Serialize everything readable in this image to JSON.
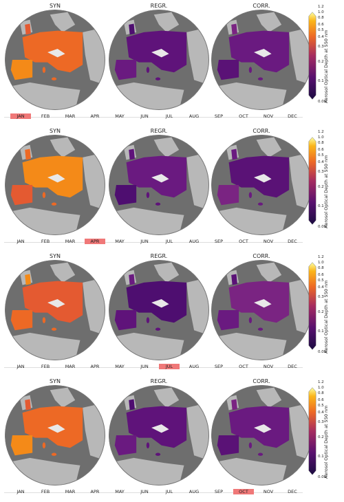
{
  "column_titles": [
    "SYN",
    "REGR.",
    "CORR."
  ],
  "months": [
    "JAN",
    "FEB",
    "MAR",
    "APR",
    "MAY",
    "JUN",
    "JUL",
    "AUG",
    "SEP",
    "OCT",
    "NOV",
    "DEC"
  ],
  "selected_months": [
    0,
    3,
    6,
    9
  ],
  "colorbar": {
    "label": "Aerosol Optical Depth at 550 nm",
    "ticks": [
      "1.2",
      "1.0",
      "0.8",
      "0.6",
      "0.5",
      "0.4",
      "0.3",
      "0.2",
      "0.1",
      "0.05"
    ],
    "colormap": "inferno",
    "colors": {
      "low": "#1b0c41",
      "mid_low": "#57106e",
      "mid": "#a52c60",
      "mid_high": "#ed6925",
      "high": "#fbb61a",
      "top": "#fcffa4"
    }
  },
  "colors": {
    "ocean": "#6e6e6e",
    "non_europe_land": "#b8b8b8",
    "highlight": "#f07878"
  }
}
